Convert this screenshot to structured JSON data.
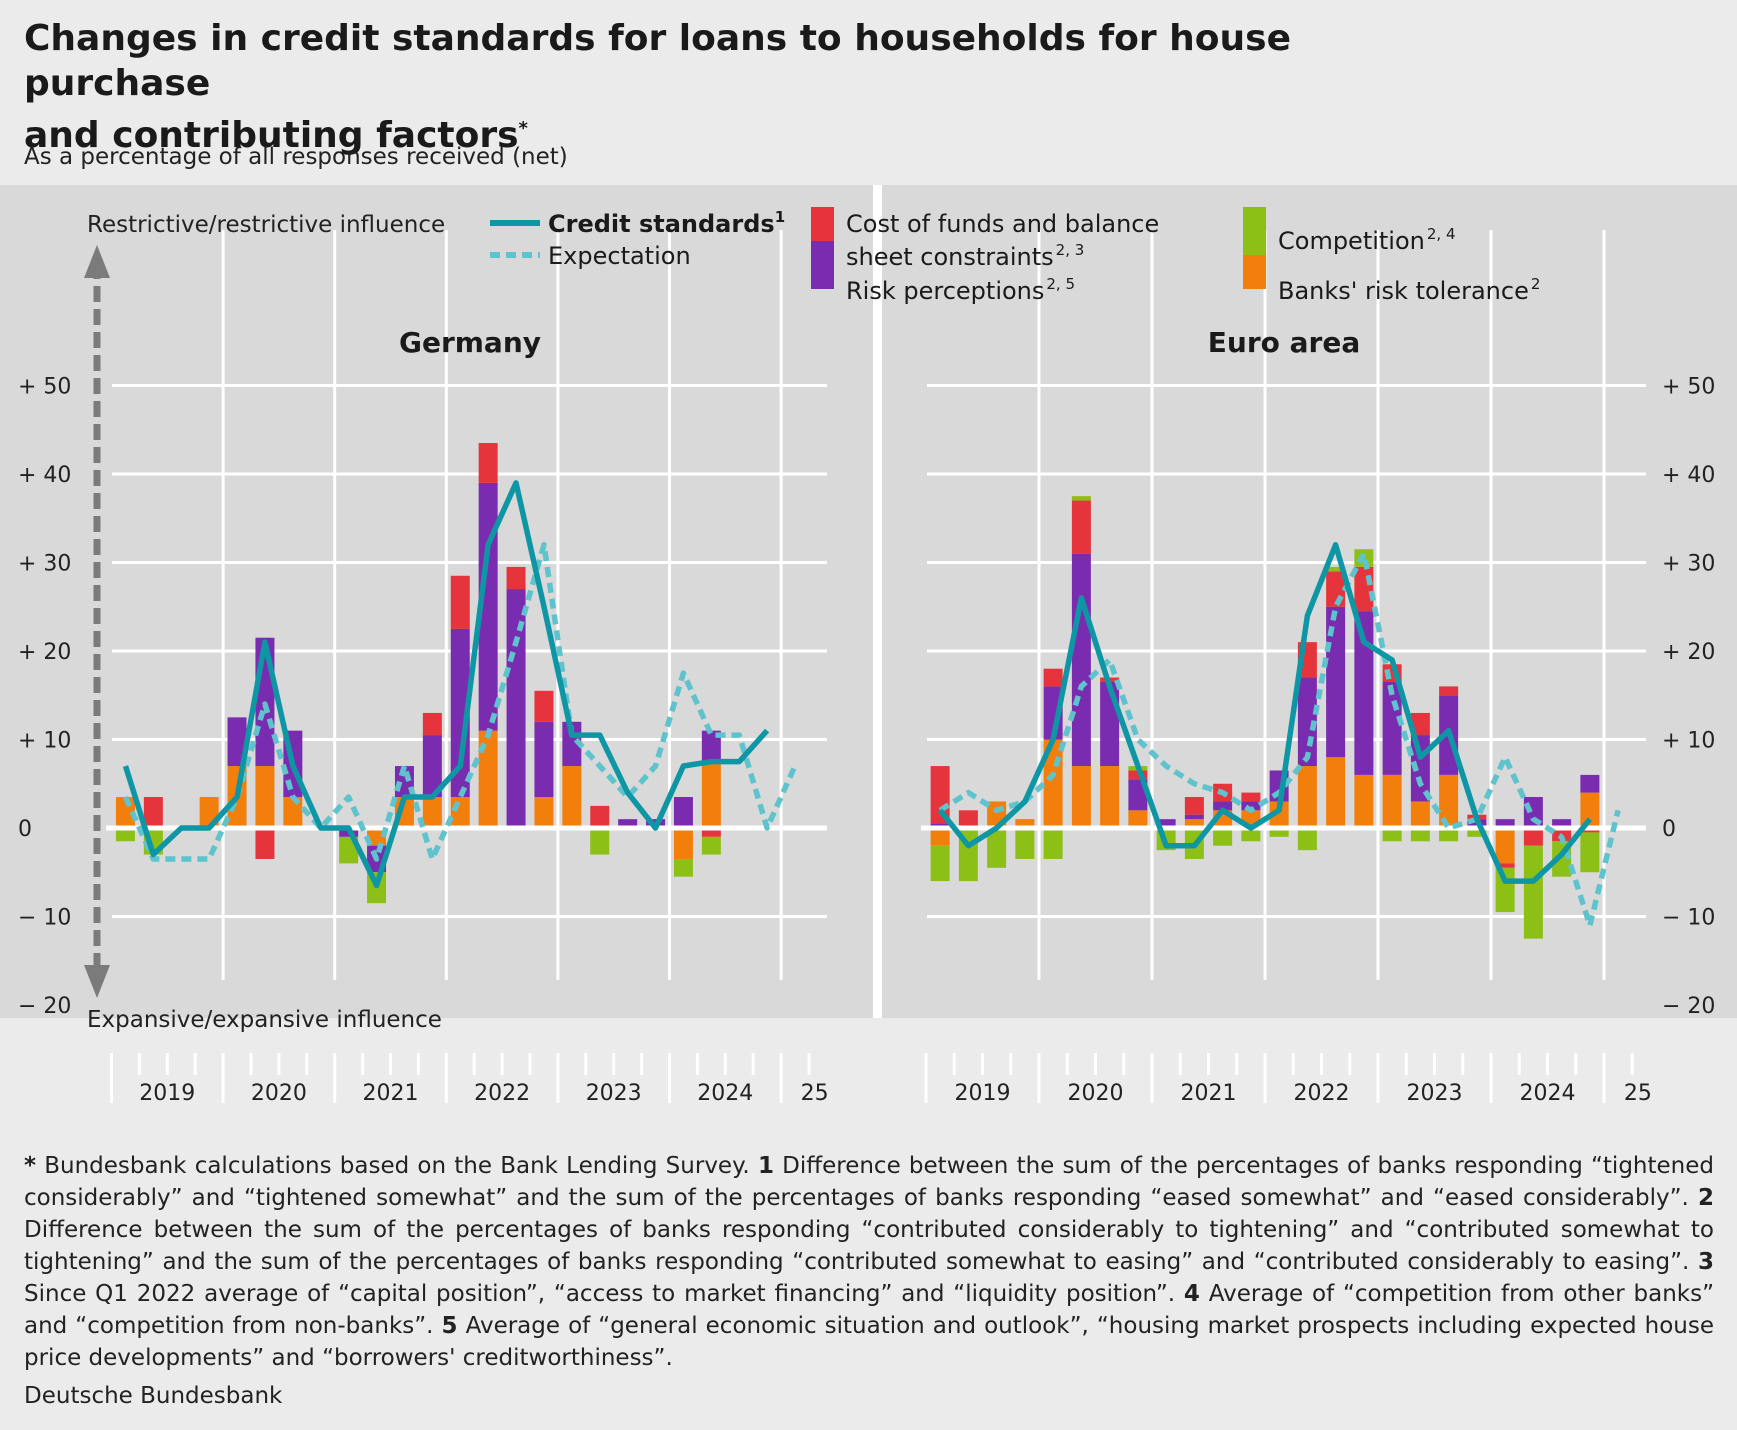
{
  "title_line1": "Changes in credit standards for loans to households for house purchase",
  "title_line2": "and contributing factors",
  "title_mark": "*",
  "subtitle": "As a percentage of all responses received (net)",
  "axis": {
    "top_label": "Restrictive/restrictive influence",
    "bottom_label": "Expansive/expansive influence",
    "ticks": [
      "+ 50",
      "+ 40",
      "+ 30",
      "+ 20",
      "+ 10",
      "0",
      "− 10",
      "− 20"
    ],
    "years": [
      "2019",
      "2020",
      "2021",
      "2022",
      "2023",
      "2024",
      "25"
    ]
  },
  "legend": {
    "credit": "Credit standards",
    "credit_sup": "1",
    "expectation": "Expectation",
    "cost_line1": "Cost of funds and balance",
    "cost_line2": "sheet constraints",
    "cost_sup": "2, 3",
    "risk": "Risk perceptions",
    "risk_sup": "2, 5",
    "competition": "Competition",
    "competition_sup": "2, 4",
    "tolerance": "Banks' risk tolerance",
    "tolerance_sup": "2"
  },
  "colors": {
    "credit": "#0f96a5",
    "expectation": "#5ec3cc",
    "cost": "#e5343b",
    "risk": "#7a2cb0",
    "competition": "#8cc016",
    "tolerance": "#f27f0c",
    "panel": "#d9d9d9",
    "arrow": "#7b7b7b"
  },
  "chart_data": [
    {
      "type": "bar",
      "title": "Germany",
      "x": [
        "2019Q1",
        "2019Q2",
        "2019Q3",
        "2019Q4",
        "2020Q1",
        "2020Q2",
        "2020Q3",
        "2020Q4",
        "2021Q1",
        "2021Q2",
        "2021Q3",
        "2021Q4",
        "2022Q1",
        "2022Q2",
        "2022Q3",
        "2022Q4",
        "2023Q1",
        "2023Q2",
        "2023Q3",
        "2023Q4",
        "2024Q1",
        "2024Q2",
        "2024Q3",
        "2024Q4",
        "2025Q1"
      ],
      "ylim": [
        -20,
        50
      ],
      "series": [
        {
          "name": "Banks' risk tolerance",
          "values": [
            3.5,
            0,
            0,
            3.5,
            7,
            7,
            3.5,
            0,
            0,
            -2,
            3.5,
            3.5,
            3.5,
            11,
            0,
            3.5,
            7,
            0,
            0,
            0,
            -3.5,
            7.5,
            0,
            0,
            0
          ]
        },
        {
          "name": "Risk perceptions",
          "values": [
            0,
            0,
            0,
            0,
            5.5,
            14.5,
            7.5,
            0,
            -1,
            -3,
            3.5,
            7,
            19,
            28,
            27,
            8.5,
            5,
            0,
            1,
            1,
            3.5,
            3.5,
            0,
            0,
            0
          ]
        },
        {
          "name": "Cost of funds and balance sheet constraints",
          "values": [
            0,
            3.5,
            0,
            0,
            0,
            -3.5,
            0,
            0,
            0,
            0,
            0,
            2.5,
            6,
            4.5,
            2.5,
            3.5,
            0,
            2.5,
            0,
            0,
            0,
            -1,
            0,
            0,
            0
          ]
        },
        {
          "name": "Competition",
          "values": [
            -1.5,
            -3,
            0,
            0,
            0,
            0,
            0,
            0,
            -3,
            -3.5,
            0,
            0,
            0,
            0,
            0,
            0,
            0,
            -3,
            0,
            0,
            -2,
            -2,
            0,
            0,
            0
          ]
        },
        {
          "name": "Credit standards",
          "values": [
            7,
            -3,
            0,
            0,
            3.5,
            21,
            7,
            0,
            0,
            -6.5,
            3.5,
            3.5,
            7,
            32,
            39,
            25,
            10.5,
            10.5,
            4,
            0,
            7,
            7.5,
            7.5,
            11,
            null
          ]
        },
        {
          "name": "Expectation",
          "values": [
            3.5,
            -3.5,
            -3.5,
            -3.5,
            3.5,
            14,
            3.5,
            0,
            3.5,
            -3.5,
            7,
            -3.5,
            3.5,
            10.5,
            21,
            32,
            10.5,
            7,
            3.5,
            7,
            17.5,
            10.5,
            10.5,
            0,
            7
          ]
        }
      ]
    },
    {
      "type": "bar",
      "title": "Euro area",
      "x": [
        "2019Q1",
        "2019Q2",
        "2019Q3",
        "2019Q4",
        "2020Q1",
        "2020Q2",
        "2020Q3",
        "2020Q4",
        "2021Q1",
        "2021Q2",
        "2021Q3",
        "2021Q4",
        "2022Q1",
        "2022Q2",
        "2022Q3",
        "2022Q4",
        "2023Q1",
        "2023Q2",
        "2023Q3",
        "2023Q4",
        "2024Q1",
        "2024Q2",
        "2024Q3",
        "2024Q4",
        "2025Q1"
      ],
      "ylim": [
        -20,
        50
      ],
      "series": [
        {
          "name": "Banks' risk tolerance",
          "values": [
            -2,
            0,
            3,
            1,
            10,
            7,
            7,
            2,
            0,
            1,
            2,
            2,
            3,
            7,
            8,
            6,
            6,
            3,
            6,
            0,
            -4,
            0,
            0,
            4,
            0
          ]
        },
        {
          "name": "Risk perceptions",
          "values": [
            0.5,
            0,
            0,
            0,
            6,
            24,
            9.5,
            3.5,
            1,
            0.5,
            1,
            1,
            3.5,
            10,
            17,
            18.5,
            10.5,
            7.5,
            9,
            1,
            1,
            3.5,
            1,
            2,
            0
          ]
        },
        {
          "name": "Cost of funds and balance sheet constraints",
          "values": [
            6.5,
            2,
            0,
            0,
            2,
            6,
            0.5,
            1,
            0,
            2,
            2,
            1,
            0,
            4,
            4,
            5,
            2,
            2.5,
            1,
            0.5,
            -0.5,
            -2,
            -1.5,
            -0.5,
            0
          ]
        },
        {
          "name": "Competition",
          "values": [
            -4,
            -6,
            -4.5,
            -3.5,
            -3.5,
            0.5,
            0,
            0.5,
            -2.5,
            -3.5,
            -2,
            -1.5,
            -1,
            -2.5,
            0.5,
            2,
            -1.5,
            -1.5,
            -1.5,
            -1,
            -5,
            -10.5,
            -4,
            -4.5,
            0
          ]
        },
        {
          "name": "Credit standards",
          "values": [
            2,
            -2,
            0,
            3,
            10,
            26,
            16,
            7,
            -2,
            -2,
            2,
            0,
            2,
            24,
            32,
            21,
            19,
            8,
            11,
            1,
            -6,
            -6,
            -3,
            1,
            null
          ]
        },
        {
          "name": "Expectation",
          "values": [
            2,
            4,
            2,
            3,
            6,
            16,
            19,
            10,
            7,
            5,
            4,
            2,
            4,
            8,
            25,
            31,
            15,
            5,
            0,
            1,
            8,
            1,
            -1,
            -11,
            2
          ]
        }
      ]
    }
  ],
  "footnote": {
    "n_star": "*",
    "t_star": " Bundesbank calculations based on the Bank Lending Survey. ",
    "n1": "1",
    "t1": " Difference between the sum of the percentages of banks responding “tightened considerably” and “tightened somewhat” and the sum of the percentages of banks responding “eased somewhat” and “eased con­siderably”. ",
    "n2": "2",
    "t2": " Difference between the sum of the percentages of banks responding “contributed considerably to tightening” and “contributed somewhat to tightening” and the sum of the percentages of banks responding “contributed somewhat to easing” and “contributed consider­ably to easing”. ",
    "n3": "3",
    "t3": " Since Q1 2022 average of “capital position”, “access to market financing” and “liquidity position”. ",
    "n4": "4",
    "t4": " Average of “competition from other banks” and “competition from non-banks”. ",
    "n5": "5",
    "t5": " Average of “general economic situation and outlook”, “housing market prospects in­cluding expected house price developments” and  “borrowers' creditworthiness”."
  },
  "source": "Deutsche Bundesbank"
}
